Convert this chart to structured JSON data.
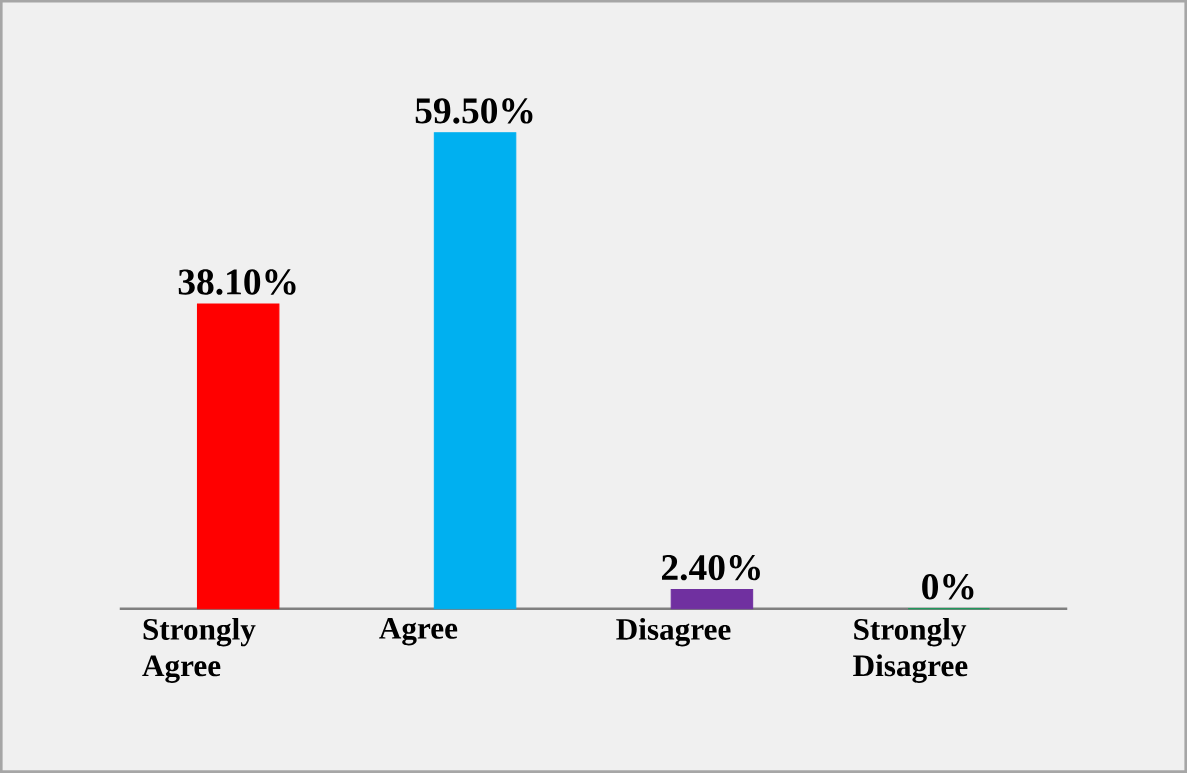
{
  "chart_data": {
    "type": "bar",
    "categories": [
      "Strongly Agree",
      "Agree",
      "Disagree",
      "Strongly Disagree"
    ],
    "values": [
      38.1,
      59.5,
      2.4,
      0
    ],
    "colors": [
      "#ff0000",
      "#00b0f0",
      "#7030a0",
      "#00a050"
    ],
    "value_labels": [
      "38.10%",
      "59.50%",
      "2.40%",
      "0%"
    ]
  }
}
